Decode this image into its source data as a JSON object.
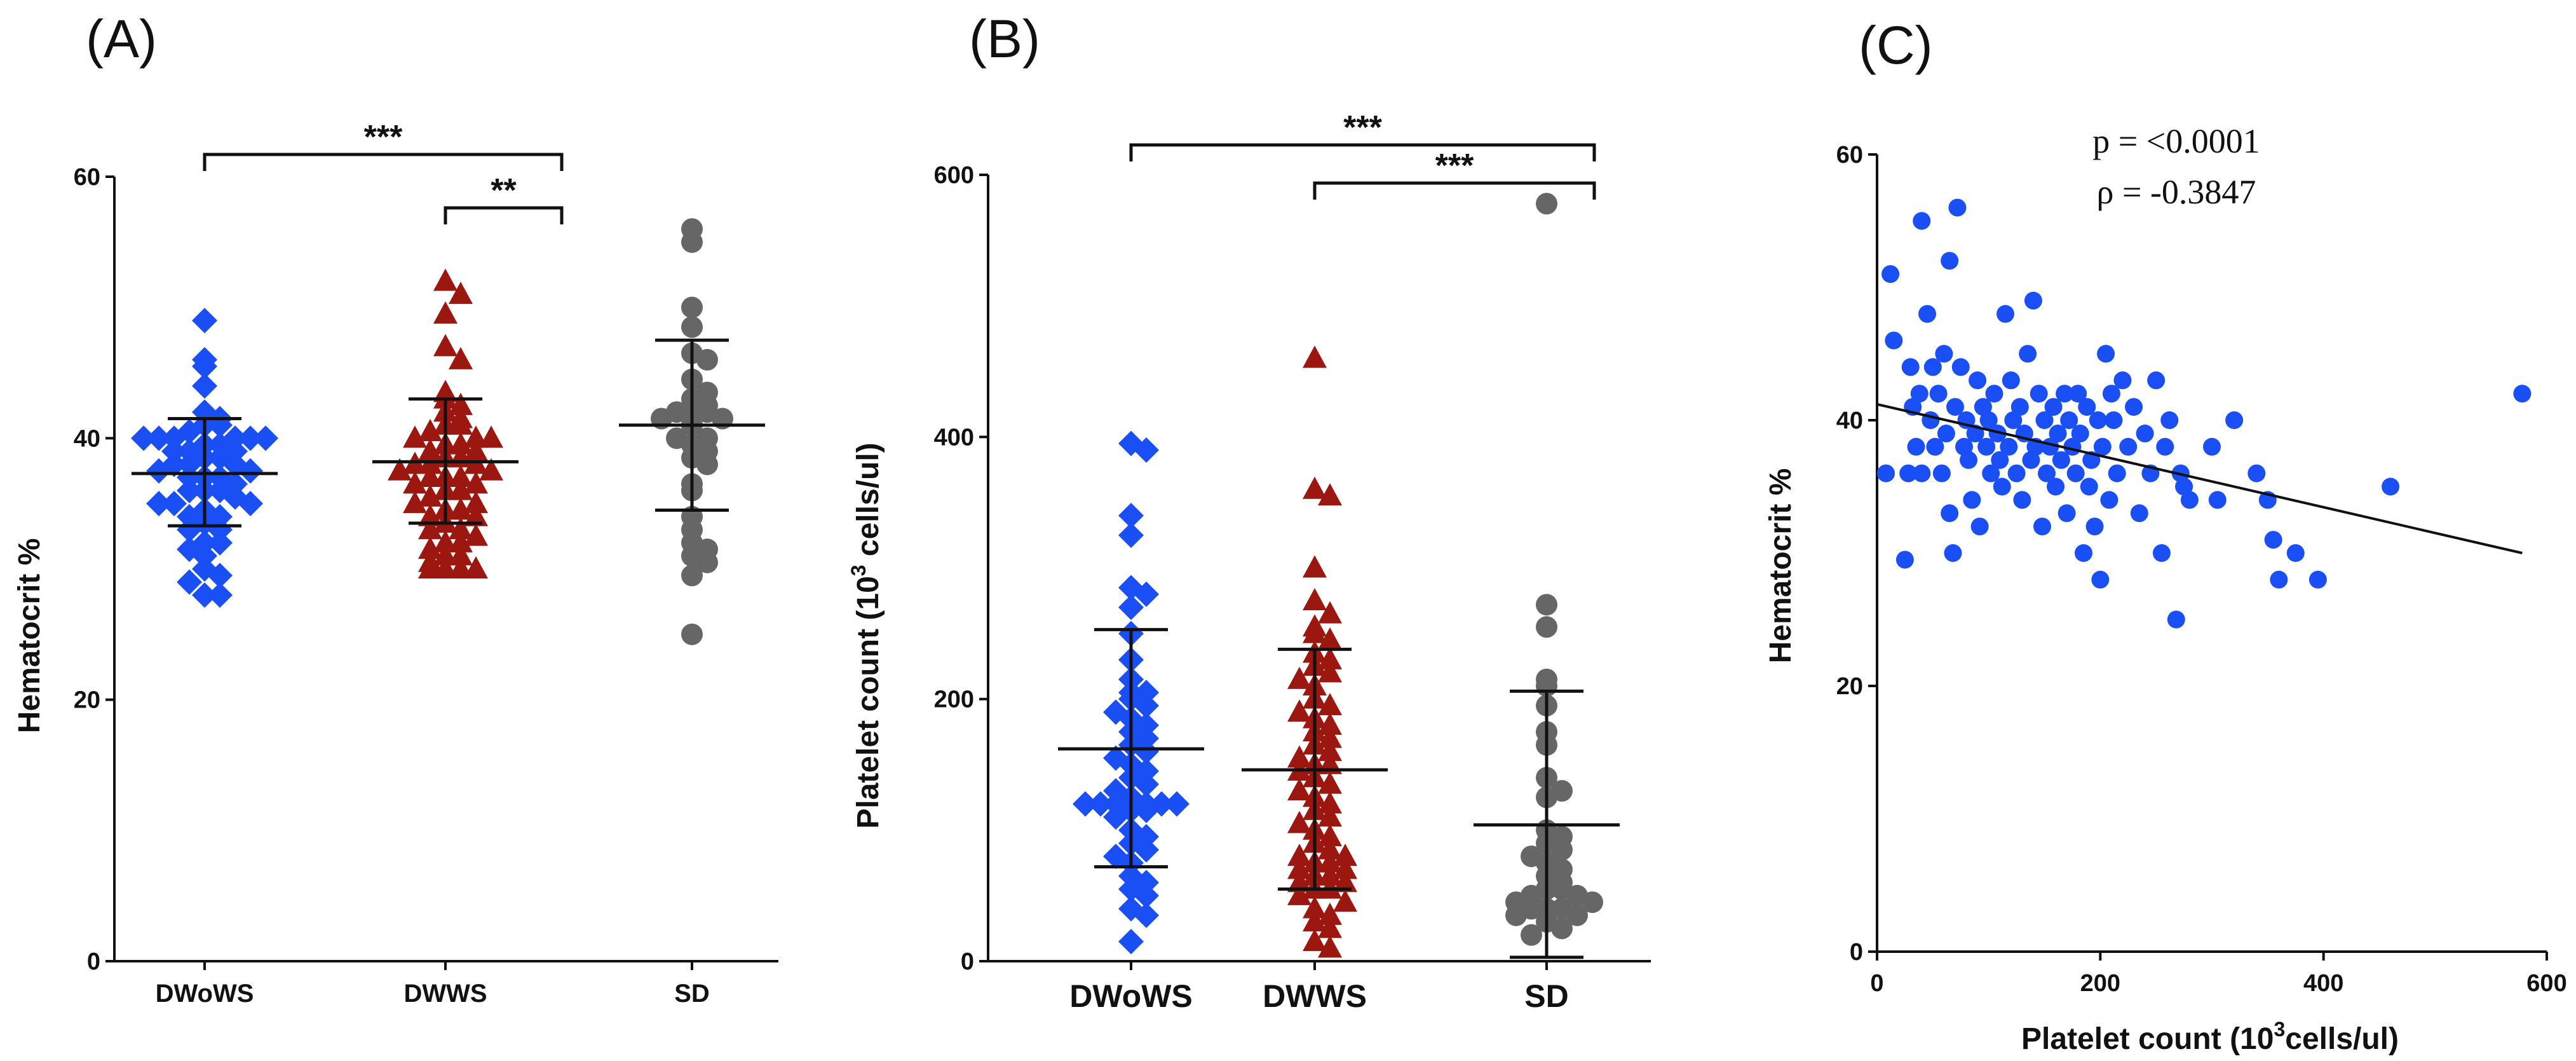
{
  "colors": {
    "DWoWS": "#1a4ff5",
    "DWWS": "#9b1710",
    "SD": "#666666",
    "scatter": "#1a4ff5"
  },
  "chart_data": [
    {
      "panel": "(A)",
      "type": "scatter",
      "ylabel": "Hematocrit %",
      "ylim": [
        0,
        60
      ],
      "yticks": [
        0,
        20,
        40,
        60
      ],
      "categories": [
        "DWoWS",
        "DWWS",
        "SD"
      ],
      "series": [
        {
          "name": "DWoWS",
          "marker": "diamond",
          "mean": 37.3,
          "sd_low": 33.3,
          "sd_high": 41.5,
          "values": [
            49,
            46,
            45.5,
            44,
            42,
            41.5,
            41,
            41,
            40.5,
            40,
            40,
            40,
            40,
            40,
            40,
            39.5,
            39.5,
            39,
            39,
            39,
            38.5,
            38.5,
            38,
            38,
            38,
            37.5,
            37.5,
            37,
            37,
            37,
            36.5,
            36,
            36,
            36,
            35.5,
            35,
            35,
            35,
            34.5,
            34,
            34,
            33.5,
            33,
            33,
            32,
            32,
            31.5,
            31,
            30,
            29.5,
            29,
            28,
            28
          ]
        },
        {
          "name": "DWWS",
          "marker": "triangle",
          "mean": 38.2,
          "sd_low": 33.5,
          "sd_high": 43.0,
          "values": [
            52,
            51,
            49.5,
            47,
            46,
            43.5,
            43,
            42.5,
            42,
            41.5,
            41,
            41,
            40.5,
            40,
            40,
            40,
            39.5,
            39.5,
            39,
            39,
            38.5,
            38.5,
            38,
            38,
            38,
            37.5,
            37.5,
            37,
            37,
            37,
            36.5,
            36.5,
            36,
            36,
            35.5,
            35,
            35,
            34.5,
            34.5,
            34,
            34,
            33.5,
            33,
            33,
            32.5,
            32,
            32,
            31.5,
            31,
            31,
            30.5,
            30,
            30,
            30,
            30
          ]
        },
        {
          "name": "SD",
          "marker": "circle",
          "mean": 41.0,
          "sd_low": 34.5,
          "sd_high": 47.5,
          "values": [
            56,
            55,
            50,
            48.5,
            46.5,
            46,
            44.5,
            43.5,
            43,
            42.5,
            42,
            42,
            42,
            41.5,
            41.5,
            41,
            40,
            40,
            39.5,
            39,
            38.5,
            38,
            36.5,
            36,
            34,
            33,
            32,
            31.5,
            31,
            30.5,
            29.5,
            25
          ]
        }
      ],
      "annotations": [
        {
          "text": "***",
          "from": "DWoWS",
          "to": "SD"
        },
        {
          "text": "**",
          "from": "DWWS",
          "to": "SD"
        }
      ]
    },
    {
      "panel": "(B)",
      "type": "scatter",
      "ylabel_pre": "Platelet count (10",
      "ylabel_sup": "3",
      "ylabel_post": " cells/ul)",
      "ylim": [
        0,
        600
      ],
      "yticks": [
        0,
        200,
        400,
        600
      ],
      "categories": [
        "DWoWS",
        "DWWS",
        "SD"
      ],
      "series": [
        {
          "name": "DWoWS",
          "marker": "diamond",
          "mean": 162,
          "sd_low": 72,
          "sd_high": 253,
          "values": [
            395,
            390,
            340,
            325,
            285,
            280,
            270,
            250,
            230,
            215,
            205,
            205,
            200,
            195,
            190,
            185,
            180,
            175,
            170,
            165,
            160,
            155,
            150,
            145,
            140,
            135,
            130,
            125,
            120,
            120,
            120,
            120,
            120,
            120,
            115,
            115,
            110,
            100,
            95,
            90,
            85,
            80,
            75,
            65,
            60,
            55,
            50,
            40,
            35,
            15
          ]
        },
        {
          "name": "DWWS",
          "marker": "triangle",
          "mean": 146,
          "sd_low": 55,
          "sd_high": 238,
          "values": [
            460,
            360,
            355,
            300,
            275,
            265,
            255,
            250,
            245,
            235,
            230,
            225,
            220,
            215,
            210,
            200,
            195,
            190,
            185,
            180,
            175,
            170,
            165,
            160,
            155,
            150,
            150,
            145,
            140,
            135,
            130,
            125,
            120,
            115,
            110,
            105,
            100,
            95,
            90,
            85,
            80,
            80,
            75,
            75,
            70,
            70,
            65,
            65,
            60,
            60,
            55,
            55,
            50,
            45,
            40,
            35,
            30,
            25,
            15,
            10
          ]
        },
        {
          "name": "SD",
          "marker": "circle",
          "mean": 104,
          "sd_low": 3,
          "sd_high": 206,
          "values": [
            578,
            272,
            255,
            215,
            210,
            195,
            175,
            165,
            140,
            130,
            125,
            100,
            95,
            90,
            85,
            80,
            75,
            70,
            65,
            60,
            55,
            55,
            50,
            50,
            45,
            45,
            40,
            40,
            40,
            35,
            35,
            30,
            25,
            20
          ]
        }
      ],
      "annotations": [
        {
          "text": "***",
          "from": "DWoWS",
          "to": "SD"
        },
        {
          "text": "***",
          "from": "DWWS",
          "to": "SD"
        }
      ]
    },
    {
      "panel": "(C)",
      "type": "scatter",
      "xlabel_pre": "Platelet count (10",
      "xlabel_sup": "3",
      "xlabel_post": "cells/ul)",
      "ylabel": "Hematocrit %",
      "xlim": [
        0,
        600
      ],
      "ylim": [
        0,
        60
      ],
      "xticks": [
        0,
        200,
        400,
        600
      ],
      "yticks": [
        0,
        20,
        40,
        60
      ],
      "stats": [
        "p = <0.0001",
        "ρ = -0.3847"
      ],
      "fit": {
        "x": [
          0,
          578
        ],
        "y": [
          41.2,
          30.0
        ]
      },
      "points": [
        [
          8,
          36
        ],
        [
          12,
          51
        ],
        [
          15,
          46
        ],
        [
          25,
          29.5
        ],
        [
          28,
          36
        ],
        [
          30,
          44
        ],
        [
          32,
          41
        ],
        [
          35,
          38
        ],
        [
          38,
          42
        ],
        [
          40,
          55
        ],
        [
          40,
          36
        ],
        [
          45,
          48
        ],
        [
          48,
          40
        ],
        [
          50,
          44
        ],
        [
          52,
          38
        ],
        [
          55,
          42
        ],
        [
          58,
          36
        ],
        [
          60,
          45
        ],
        [
          62,
          39
        ],
        [
          65,
          52
        ],
        [
          65,
          33
        ],
        [
          68,
          30
        ],
        [
          70,
          41
        ],
        [
          72,
          56
        ],
        [
          75,
          44
        ],
        [
          78,
          38
        ],
        [
          80,
          40
        ],
        [
          82,
          37
        ],
        [
          85,
          34
        ],
        [
          88,
          39
        ],
        [
          90,
          43
        ],
        [
          92,
          32
        ],
        [
          95,
          41
        ],
        [
          98,
          38
        ],
        [
          100,
          40
        ],
        [
          102,
          36
        ],
        [
          105,
          42
        ],
        [
          108,
          39
        ],
        [
          110,
          37
        ],
        [
          112,
          35
        ],
        [
          115,
          48
        ],
        [
          118,
          38
        ],
        [
          120,
          43
        ],
        [
          122,
          40
        ],
        [
          125,
          36
        ],
        [
          128,
          41
        ],
        [
          130,
          34
        ],
        [
          132,
          39
        ],
        [
          135,
          45
        ],
        [
          138,
          37
        ],
        [
          140,
          49
        ],
        [
          142,
          38
        ],
        [
          145,
          42
        ],
        [
          148,
          32
        ],
        [
          150,
          40
        ],
        [
          152,
          36
        ],
        [
          155,
          38
        ],
        [
          158,
          41
        ],
        [
          160,
          35
        ],
        [
          162,
          39
        ],
        [
          165,
          37
        ],
        [
          168,
          42
        ],
        [
          170,
          33
        ],
        [
          172,
          40
        ],
        [
          175,
          38
        ],
        [
          178,
          36
        ],
        [
          180,
          42
        ],
        [
          182,
          39
        ],
        [
          185,
          30
        ],
        [
          188,
          41
        ],
        [
          190,
          35
        ],
        [
          192,
          37
        ],
        [
          195,
          32
        ],
        [
          198,
          40
        ],
        [
          200,
          28
        ],
        [
          202,
          38
        ],
        [
          205,
          45
        ],
        [
          208,
          34
        ],
        [
          210,
          42
        ],
        [
          212,
          40
        ],
        [
          215,
          36
        ],
        [
          220,
          43
        ],
        [
          225,
          38
        ],
        [
          230,
          41
        ],
        [
          235,
          33
        ],
        [
          240,
          39
        ],
        [
          245,
          36
        ],
        [
          250,
          43
        ],
        [
          255,
          30
        ],
        [
          258,
          38
        ],
        [
          262,
          40
        ],
        [
          268,
          25
        ],
        [
          272,
          36
        ],
        [
          275,
          35
        ],
        [
          280,
          34
        ],
        [
          300,
          38
        ],
        [
          305,
          34
        ],
        [
          320,
          40
        ],
        [
          340,
          36
        ],
        [
          350,
          34
        ],
        [
          355,
          31
        ],
        [
          360,
          28
        ],
        [
          375,
          30
        ],
        [
          395,
          28
        ],
        [
          460,
          35
        ],
        [
          578,
          42
        ]
      ]
    }
  ]
}
